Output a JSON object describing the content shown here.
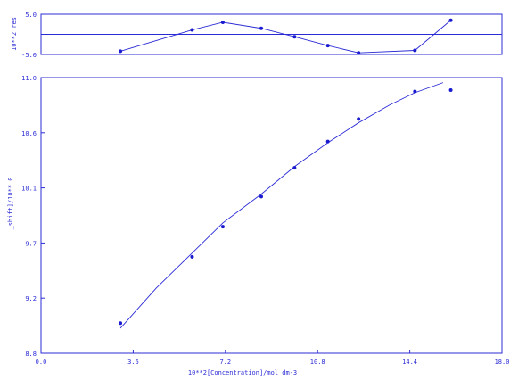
{
  "chart_data": [
    {
      "type": "line",
      "ylabel": "10**2 res",
      "yticks": [
        "5.0",
        "-5.0"
      ],
      "ylim": [
        -5.0,
        5.0
      ],
      "xlim": [
        0.0,
        18.0
      ],
      "baseline": 0,
      "series": [
        {
          "values": [
            {
              "x": 3.1,
              "y": -4.2
            },
            {
              "x": 5.9,
              "y": 1.1
            },
            {
              "x": 7.1,
              "y": 3.0
            },
            {
              "x": 8.6,
              "y": 1.5
            },
            {
              "x": 9.9,
              "y": -0.6
            },
            {
              "x": 11.2,
              "y": -2.8
            },
            {
              "x": 12.4,
              "y": -4.6
            },
            {
              "x": 14.6,
              "y": -4.0
            },
            {
              "x": 16.0,
              "y": 3.5
            }
          ]
        }
      ]
    },
    {
      "type": "scatter",
      "xlabel": "10**2[Concentration]/mol dm-3",
      "ylabel": "_shift]/10** 0",
      "xlim": [
        0.0,
        18.0
      ],
      "ylim": [
        8.8,
        11.0
      ],
      "xticks": [
        "0.0",
        "3.6",
        "7.2",
        "10.8",
        "14.4",
        "18.0"
      ],
      "yticks": [
        "8.8",
        "9.2",
        "9.7",
        "10.1",
        "10.6",
        "11.0"
      ],
      "points": [
        {
          "x": 3.1,
          "y": 9.04
        },
        {
          "x": 5.9,
          "y": 9.57
        },
        {
          "x": 7.1,
          "y": 9.81
        },
        {
          "x": 8.6,
          "y": 10.05
        },
        {
          "x": 9.9,
          "y": 10.28
        },
        {
          "x": 11.2,
          "y": 10.49
        },
        {
          "x": 12.4,
          "y": 10.67
        },
        {
          "x": 14.6,
          "y": 10.89
        },
        {
          "x": 16.0,
          "y": 10.9
        }
      ],
      "fit": [
        {
          "x": 3.1,
          "y": 9.0
        },
        {
          "x": 4.5,
          "y": 9.32
        },
        {
          "x": 5.9,
          "y": 9.6
        },
        {
          "x": 7.1,
          "y": 9.84
        },
        {
          "x": 8.6,
          "y": 10.07
        },
        {
          "x": 9.9,
          "y": 10.29
        },
        {
          "x": 11.2,
          "y": 10.48
        },
        {
          "x": 12.4,
          "y": 10.64
        },
        {
          "x": 13.6,
          "y": 10.78
        },
        {
          "x": 14.6,
          "y": 10.88
        },
        {
          "x": 15.7,
          "y": 10.96
        }
      ]
    }
  ]
}
